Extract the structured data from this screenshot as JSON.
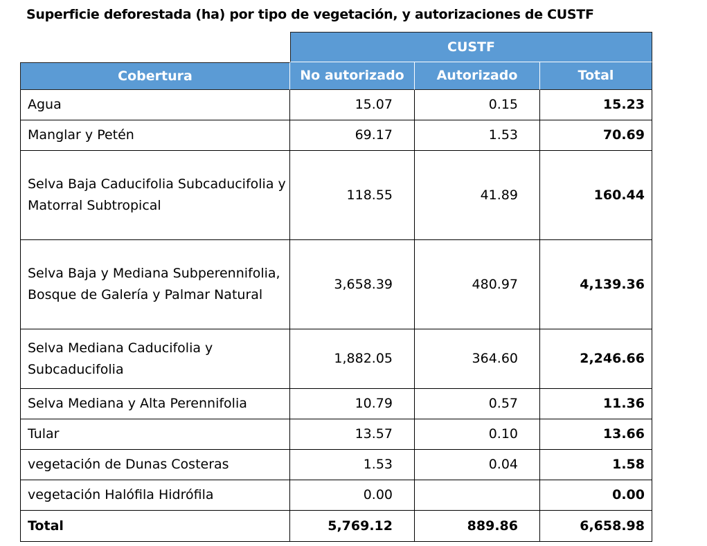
{
  "title": "Superficie deforestada (ha) por tipo de vegetación, y autorizaciones de CUSTF",
  "group_header": "CUSTF",
  "columns": [
    "Cobertura",
    "No autorizado",
    "Autorizado",
    "Total"
  ],
  "rows": [
    {
      "cobertura": "Agua",
      "no_autorizado": "15.07",
      "autorizado": "0.15",
      "total": "15.23"
    },
    {
      "cobertura": "Manglar y Petén",
      "no_autorizado": "69.17",
      "autorizado": "1.53",
      "total": "70.69"
    },
    {
      "cobertura": "Selva Baja Caducifolia Subcaducifolia y Matorral Subtropical",
      "no_autorizado": "118.55",
      "autorizado": "41.89",
      "total": "160.44"
    },
    {
      "cobertura": "Selva Baja y Mediana Subperennifolia, Bosque de Galería y Palmar Natural",
      "no_autorizado": "3,658.39",
      "autorizado": "480.97",
      "total": "4,139.36"
    },
    {
      "cobertura": "Selva Mediana Caducifolia y Subcaducifolia",
      "no_autorizado": "1,882.05",
      "autorizado": "364.60",
      "total": "2,246.66"
    },
    {
      "cobertura": "Selva Mediana y Alta Perennifolia",
      "no_autorizado": "10.79",
      "autorizado": "0.57",
      "total": "11.36"
    },
    {
      "cobertura": "Tular",
      "no_autorizado": "13.57",
      "autorizado": "0.10",
      "total": "13.66"
    },
    {
      "cobertura": "vegetación de Dunas Costeras",
      "no_autorizado": "1.53",
      "autorizado": "0.04",
      "total": "1.58"
    },
    {
      "cobertura": "vegetación Halófila Hidrófila",
      "no_autorizado": "0.00",
      "autorizado": "",
      "total": "0.00"
    }
  ],
  "totals": {
    "label": "Total",
    "no_autorizado": "5,769.12",
    "autorizado": "889.86",
    "total": "6,658.98"
  },
  "colors": {
    "header_bg": "#5b9bd5",
    "header_text": "#ffffff"
  }
}
